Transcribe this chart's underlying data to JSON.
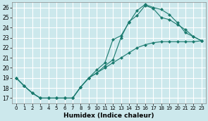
{
  "xlabel": "Humidex (Indice chaleur)",
  "bg_color": "#cce8ec",
  "grid_color": "#ffffff",
  "line_color": "#1a7a6e",
  "xlim": [
    -0.5,
    23.5
  ],
  "ylim": [
    16.5,
    26.5
  ],
  "xticks": [
    0,
    1,
    2,
    3,
    4,
    5,
    6,
    7,
    8,
    9,
    10,
    11,
    12,
    13,
    14,
    15,
    16,
    17,
    18,
    19,
    20,
    21,
    22,
    23
  ],
  "yticks": [
    17,
    18,
    19,
    20,
    21,
    22,
    23,
    24,
    25,
    26
  ],
  "line1_x": [
    0,
    1,
    2,
    3,
    4,
    5,
    6,
    7,
    8,
    9,
    10,
    11,
    12,
    13,
    14,
    15,
    16,
    17,
    18,
    19,
    20,
    21,
    22,
    23
  ],
  "line1_y": [
    19.0,
    18.2,
    17.5,
    17.0,
    17.0,
    17.0,
    17.0,
    17.0,
    18.1,
    19.0,
    19.5,
    20.2,
    20.8,
    23.0,
    24.6,
    25.2,
    26.2,
    25.9,
    25.0,
    24.8,
    24.3,
    23.8,
    23.1,
    22.7
  ],
  "line2_x": [
    0,
    1,
    2,
    3,
    4,
    5,
    6,
    7,
    8,
    9,
    10,
    11,
    12,
    13,
    14,
    15,
    16,
    17,
    18,
    19,
    20,
    21,
    22,
    23
  ],
  "line2_y": [
    19.0,
    18.2,
    17.5,
    17.0,
    17.0,
    17.0,
    17.0,
    17.0,
    18.1,
    19.0,
    19.8,
    20.5,
    22.8,
    23.2,
    24.5,
    25.7,
    26.3,
    26.0,
    25.8,
    25.3,
    24.5,
    23.5,
    23.1,
    22.7
  ],
  "line3_x": [
    0,
    1,
    2,
    3,
    4,
    5,
    6,
    7,
    8,
    9,
    10,
    11,
    12,
    13,
    14,
    15,
    16,
    17,
    18,
    19,
    20,
    21,
    22,
    23
  ],
  "line3_y": [
    19.0,
    18.2,
    17.5,
    17.0,
    17.0,
    17.0,
    17.0,
    17.0,
    18.1,
    19.0,
    19.5,
    20.0,
    20.5,
    21.0,
    21.5,
    22.0,
    22.3,
    22.5,
    22.6,
    22.6,
    22.6,
    22.6,
    22.6,
    22.7
  ],
  "markersize": 2.5
}
